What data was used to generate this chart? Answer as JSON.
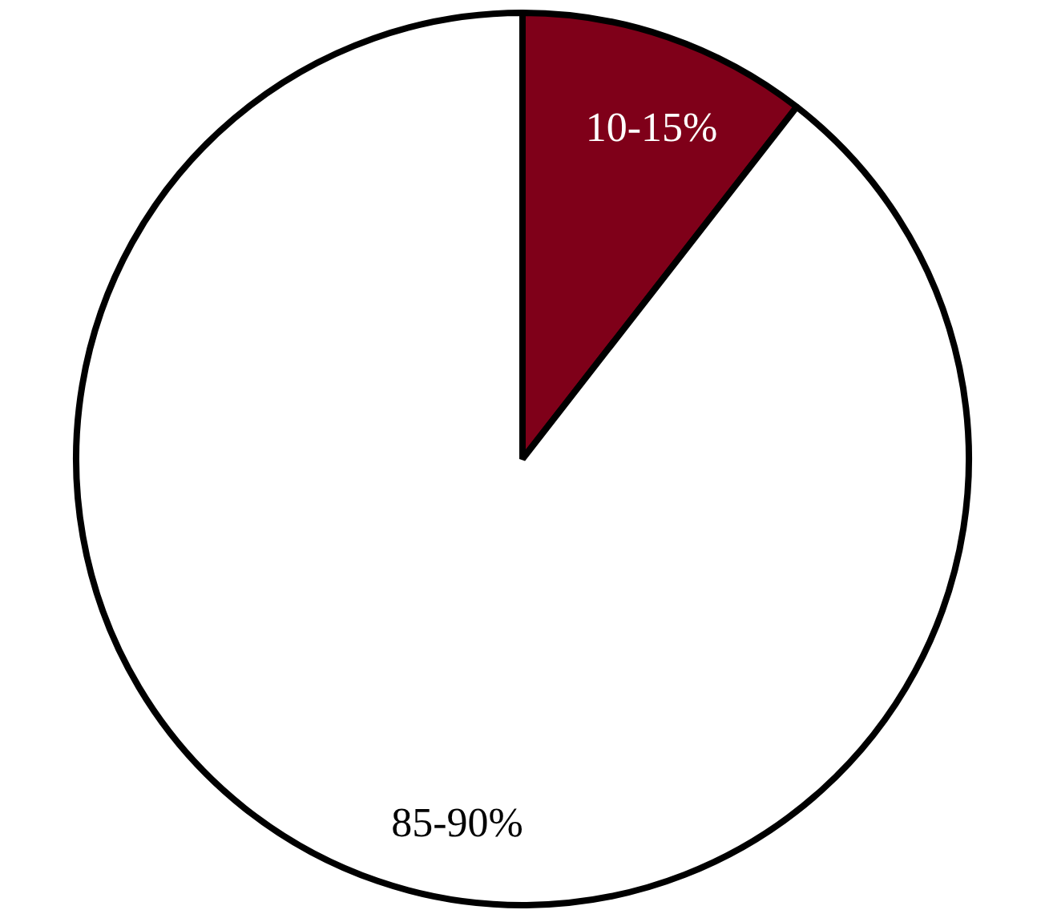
{
  "chart_data": {
    "type": "pie",
    "categories": [
      null,
      null
    ],
    "values": [
      10,
      85
    ],
    "colors": [
      "#7f0019",
      "#ffffff"
    ],
    "value_labels": [
      "10-15%",
      "85-90%"
    ],
    "legend": false
  }
}
